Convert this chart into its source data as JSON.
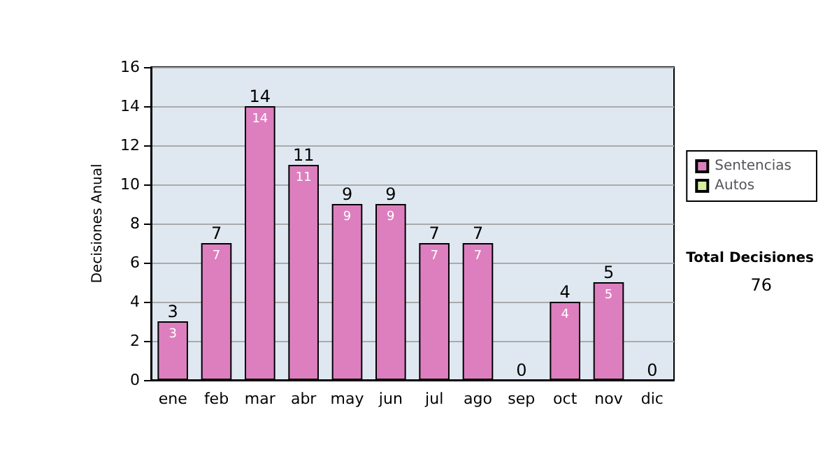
{
  "chart_data": {
    "type": "bar",
    "ylabel": "Decisiones Anual",
    "categories": [
      "ene",
      "feb",
      "mar",
      "abr",
      "may",
      "jun",
      "jul",
      "ago",
      "sep",
      "oct",
      "nov",
      "dic"
    ],
    "series": [
      {
        "name": "Sentencias",
        "color": "#dd7fbf",
        "values": [
          3,
          7,
          14,
          11,
          9,
          9,
          7,
          7,
          0,
          4,
          5,
          0
        ],
        "value_labels": [
          "3",
          "7",
          "14",
          "11",
          "9",
          "9",
          "7",
          "7",
          null,
          "4",
          "5",
          null
        ]
      },
      {
        "name": "Autos",
        "color": "#d8ef9c",
        "values": [
          0,
          0,
          0,
          0,
          0,
          0,
          0,
          0,
          0,
          0,
          0,
          0
        ]
      }
    ],
    "stacked": true,
    "totals": [
      "3",
      "7",
      "14",
      "11",
      "9",
      "9",
      "7",
      "7",
      "0",
      "4",
      "5",
      "0"
    ],
    "ylim": [
      0,
      16
    ],
    "yticks": [
      0,
      2,
      4,
      6,
      8,
      10,
      12,
      14,
      16
    ],
    "grid": "y",
    "legend": "right",
    "annotations": [
      "Total Decisiones",
      "76"
    ]
  }
}
